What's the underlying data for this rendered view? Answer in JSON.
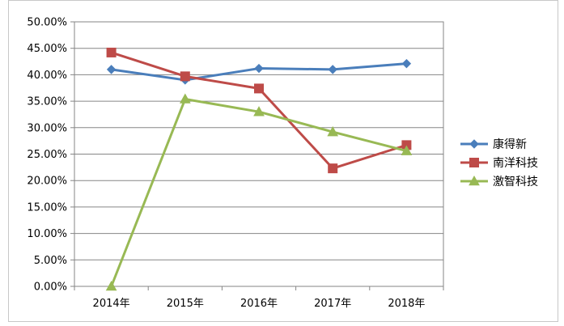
{
  "chart_data": {
    "type": "line",
    "title": "",
    "xlabel": "",
    "ylabel": "",
    "categories": [
      "2014年",
      "2015年",
      "2016年",
      "2017年",
      "2018年"
    ],
    "y_ticks": [
      "0.00%",
      "5.00%",
      "10.00%",
      "15.00%",
      "20.00%",
      "25.00%",
      "30.00%",
      "35.00%",
      "40.00%",
      "45.00%",
      "50.00%"
    ],
    "ylim": [
      0,
      50
    ],
    "grid": true,
    "legend_position": "right",
    "series": [
      {
        "name": "康得新",
        "color": "#4a7ebb",
        "marker": "diamond",
        "values": [
          41.0,
          39.0,
          41.2,
          41.0,
          42.1
        ]
      },
      {
        "name": "南洋科技",
        "color": "#be4b48",
        "marker": "square",
        "values": [
          44.2,
          39.7,
          37.4,
          22.3,
          26.7
        ]
      },
      {
        "name": "激智科技",
        "color": "#98b954",
        "marker": "triangle",
        "values": [
          0.0,
          35.4,
          33.0,
          29.2,
          25.6
        ]
      }
    ]
  }
}
